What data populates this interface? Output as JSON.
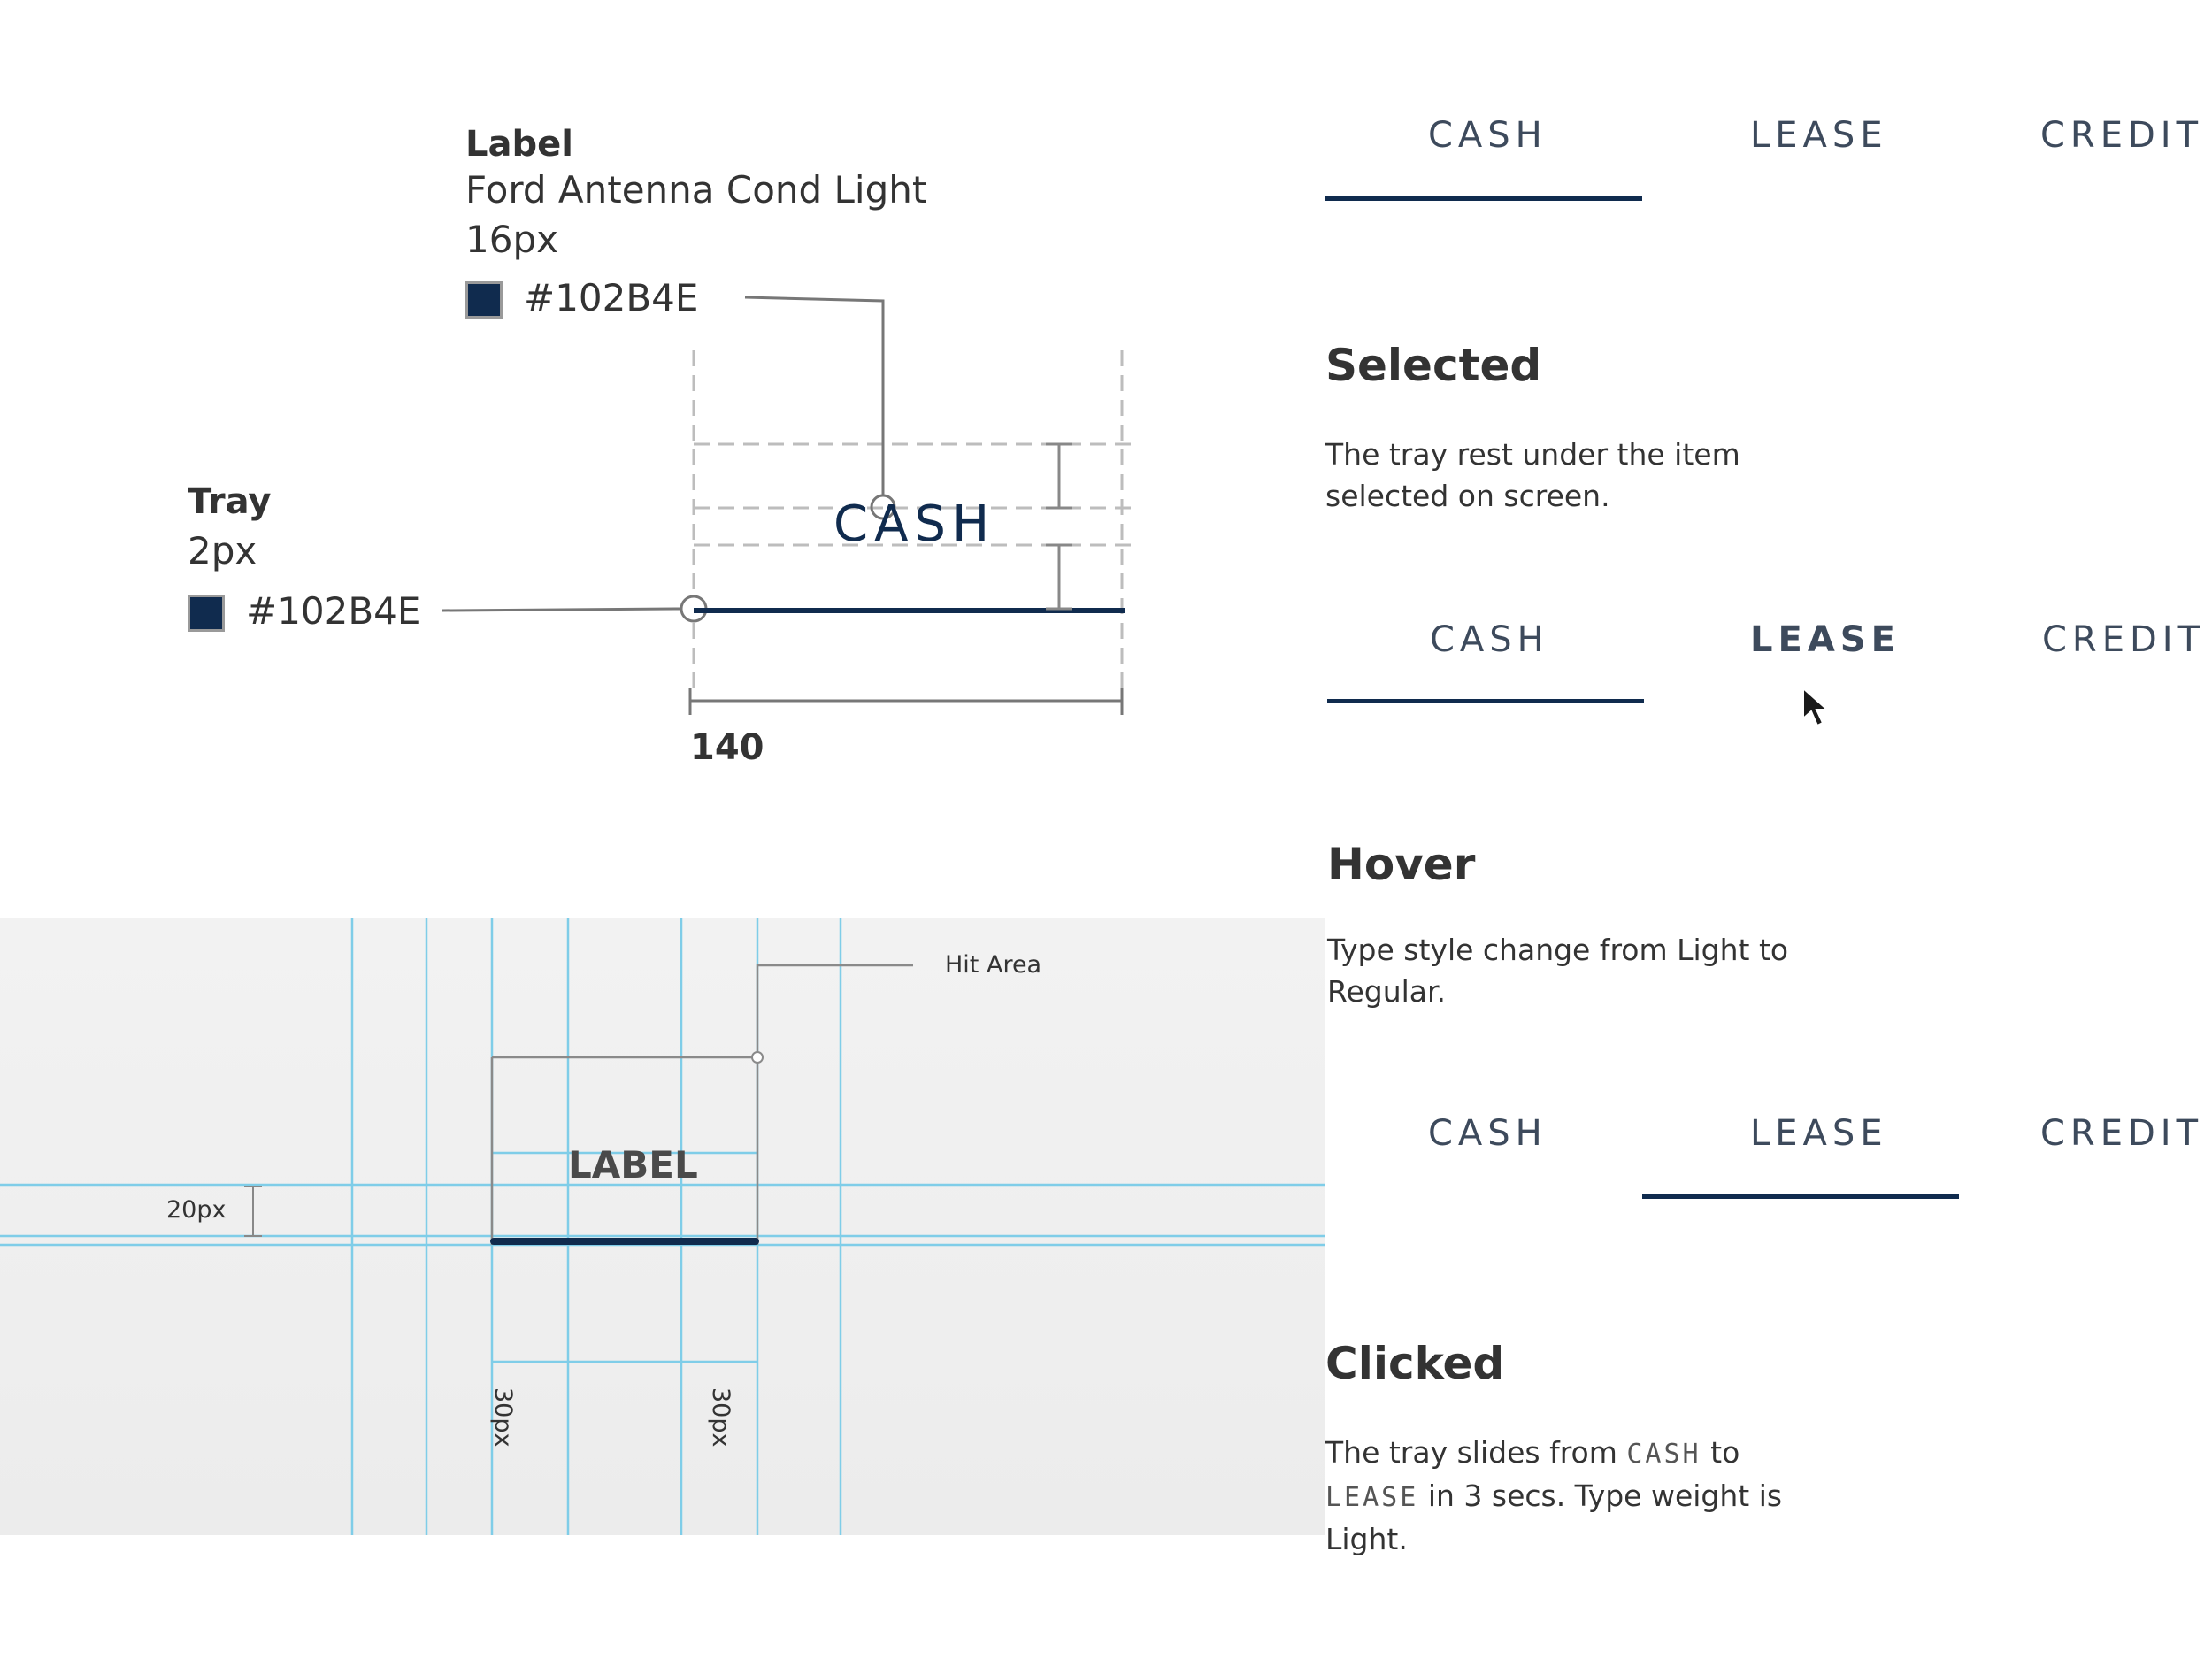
{
  "label_spec": {
    "title": "Label",
    "font": "Ford Antenna Cond Light",
    "size": "16px",
    "color_hex": "#102B4E"
  },
  "tray_spec": {
    "title": "Tray",
    "size": "2px",
    "color_hex": "#102B4E"
  },
  "sample_word": "CASH",
  "width_dimension": "140",
  "grid": {
    "hit_area_label": "Hit Area",
    "label_text": "LABEL",
    "height_dim": "20px",
    "left_pad_dim": "30px",
    "right_pad_dim": "30px"
  },
  "tabs": [
    "CASH",
    "LEASE",
    "CREDIT"
  ],
  "states": {
    "selected": {
      "title": "Selected",
      "desc": "The tray rest under the item selected on screen."
    },
    "hover": {
      "title": "Hover",
      "desc": "Type style change from Light to Regular."
    },
    "clicked": {
      "title": "Clicked",
      "desc_1": "The tray slides from",
      "word_from": "CASH",
      "desc_2": "to",
      "word_to": "LEASE",
      "desc_3": "in 3 secs. Type weight is Light."
    }
  },
  "colors": {
    "tray": "#102B4E",
    "grid_line": "#7fcde8"
  }
}
